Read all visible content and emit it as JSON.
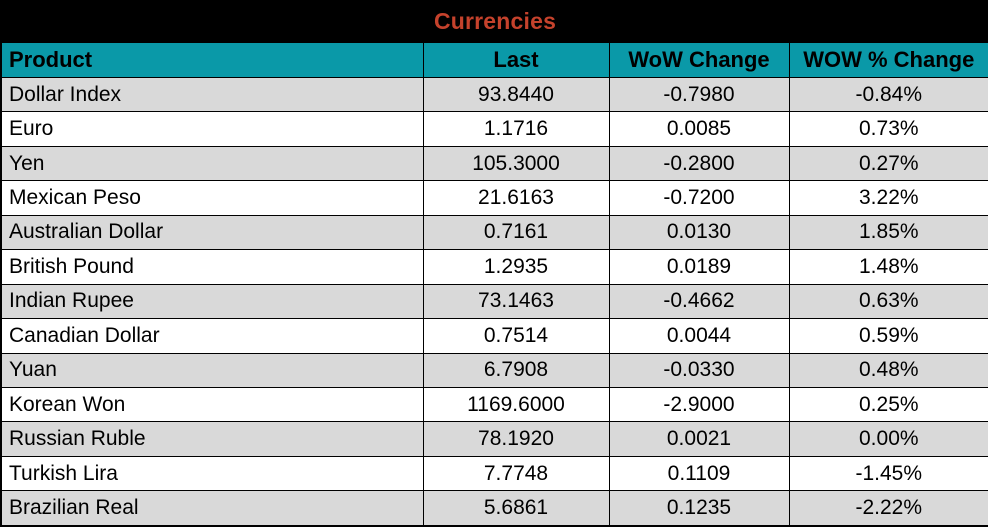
{
  "title": "Currencies",
  "table": {
    "columns": [
      "Product",
      "Last",
      "WoW Change",
      "WOW % Change"
    ],
    "rows": [
      [
        "Dollar Index",
        "93.8440",
        "-0.7980",
        "-0.84%"
      ],
      [
        "Euro",
        "1.1716",
        "0.0085",
        "0.73%"
      ],
      [
        "Yen",
        "105.3000",
        "-0.2800",
        "0.27%"
      ],
      [
        "Mexican Peso",
        "21.6163",
        "-0.7200",
        "3.22%"
      ],
      [
        "Australian Dollar",
        "0.7161",
        "0.0130",
        "1.85%"
      ],
      [
        "British Pound",
        "1.2935",
        "0.0189",
        "1.48%"
      ],
      [
        "Indian Rupee",
        "73.1463",
        "-0.4662",
        "0.63%"
      ],
      [
        "Canadian Dollar",
        "0.7514",
        "0.0044",
        "0.59%"
      ],
      [
        "Yuan",
        "6.7908",
        "-0.0330",
        "0.48%"
      ],
      [
        "Korean Won",
        "1169.6000",
        "-2.9000",
        "0.25%"
      ],
      [
        "Russian Ruble",
        "78.1920",
        "0.0021",
        "0.00%"
      ],
      [
        "Turkish Lira",
        "7.7748",
        "0.1109",
        "-1.45%"
      ],
      [
        "Brazilian Real",
        "5.6861",
        "0.1235",
        "-2.22%"
      ]
    ]
  },
  "colors": {
    "title_background": "#000000",
    "title_text": "#C5422C",
    "header_background": "#0A99A8",
    "header_text": "#000000",
    "row_stripe": "#D9D9D9",
    "row_plain": "#FFFFFF",
    "grid_border": "#000000"
  }
}
